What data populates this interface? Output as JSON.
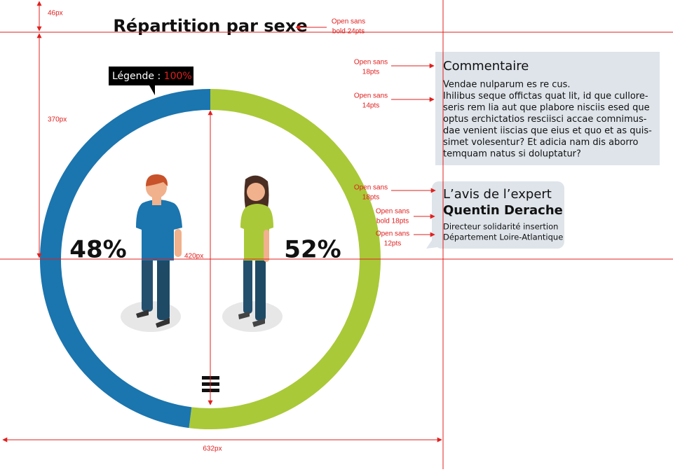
{
  "chart_data": {
    "type": "donut",
    "title": "Répartition par sexe",
    "values": [
      48,
      52
    ],
    "value_labels": [
      "48%",
      "52%"
    ],
    "colors": [
      "#1b75ae",
      "#a9c938"
    ]
  },
  "legend": {
    "label": "Légende : ",
    "value": "100%"
  },
  "comment": {
    "title": "Commentaire",
    "lines": [
      "Vendae nulparum es re cus.",
      "Ihilibus seque offictas quat lit, id que cullore-",
      "seris rem lia aut que plabore nisciis esed que",
      "optus erchictatios resciisci accae comnimus-",
      "dae venient iiscias que eius et quo et as quis-",
      "simet volesentur? Et adicia nam dis aborro",
      "temquam natus si doluptatur?"
    ]
  },
  "expert": {
    "heading": "L’avis de l’expert",
    "name": "Quentin Derache",
    "lines": [
      "Directeur solidarité insertion",
      "Département Loire-Atlantique"
    ]
  },
  "annotations": {
    "measures": [
      "46px",
      "370px",
      "420px",
      "632px"
    ],
    "fonts": [
      [
        "Open sans",
        "bold 24pts"
      ],
      [
        "Open sans",
        "18pts"
      ],
      [
        "Open sans",
        "14pts"
      ],
      [
        "Open sans",
        "18pts"
      ],
      [
        "Open sans",
        "bold 18pts"
      ],
      [
        "Open sans",
        "12pts"
      ]
    ]
  }
}
